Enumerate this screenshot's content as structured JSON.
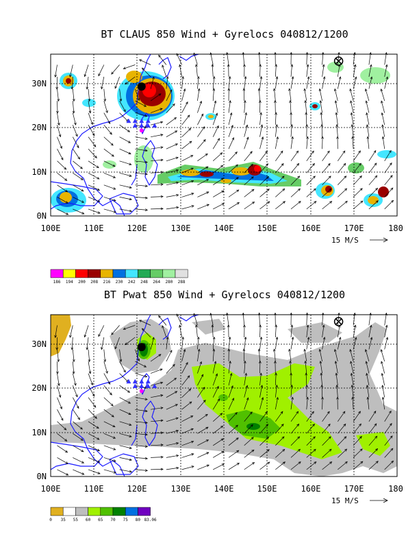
{
  "panels": [
    {
      "id": "top",
      "title": "BT CLAUS 850 Wind + Gyrelocs 040812/1200",
      "x_labels": [
        "100E",
        "110E",
        "120E",
        "130E",
        "140E",
        "150E",
        "160E",
        "170E",
        "180"
      ],
      "y_labels": [
        "30N",
        "20N",
        "10N",
        "0N"
      ],
      "reference_vector": "15 M/S",
      "colorbar_labels": [
        "186",
        "194",
        "200",
        "208",
        "216",
        "230",
        "242",
        "248",
        "264",
        "280",
        "288"
      ],
      "colorbar_colors": [
        "#ff00ff",
        "#ffff00",
        "#ff0000",
        "#990000",
        "#e8b400",
        "#0070e0",
        "#44e6ff",
        "#22aa55",
        "#66cc66",
        "#a0f0a0",
        "#e0e0e0"
      ]
    },
    {
      "id": "bottom",
      "title": "BT Pwat 850 Wind + Gyrelocs 040812/1200",
      "x_labels": [
        "100E",
        "110E",
        "120E",
        "130E",
        "140E",
        "150E",
        "160E",
        "170E",
        "180"
      ],
      "y_labels": [
        "30N",
        "20N",
        "10N",
        "0N"
      ],
      "reference_vector": "15 M/S",
      "colorbar_labels": [
        "0",
        "35",
        "55",
        "60",
        "65",
        "70",
        "75",
        "80",
        "83.06"
      ],
      "colorbar_colors": [
        "#e0b020",
        "#ffffff",
        "#bebebe",
        "#a0f000",
        "#50c000",
        "#008000",
        "#0070e0",
        "#7000c0"
      ]
    }
  ],
  "map_extent": {
    "lon": [
      100,
      180
    ],
    "lat": [
      0,
      35
    ]
  },
  "gyre_locations_lonlat": [
    [
      119.5,
      19.5
    ],
    [
      121,
      19.5
    ],
    [
      122.5,
      19.5
    ],
    [
      124,
      19.5
    ],
    [
      118,
      20.5
    ],
    [
      119.5,
      20.5
    ],
    [
      121,
      20.5
    ],
    [
      122.5,
      20.5
    ]
  ],
  "storm_center_lonlat": [
    121,
    28
  ],
  "cross_marker_lonlat": [
    166.5,
    33.5
  ]
}
